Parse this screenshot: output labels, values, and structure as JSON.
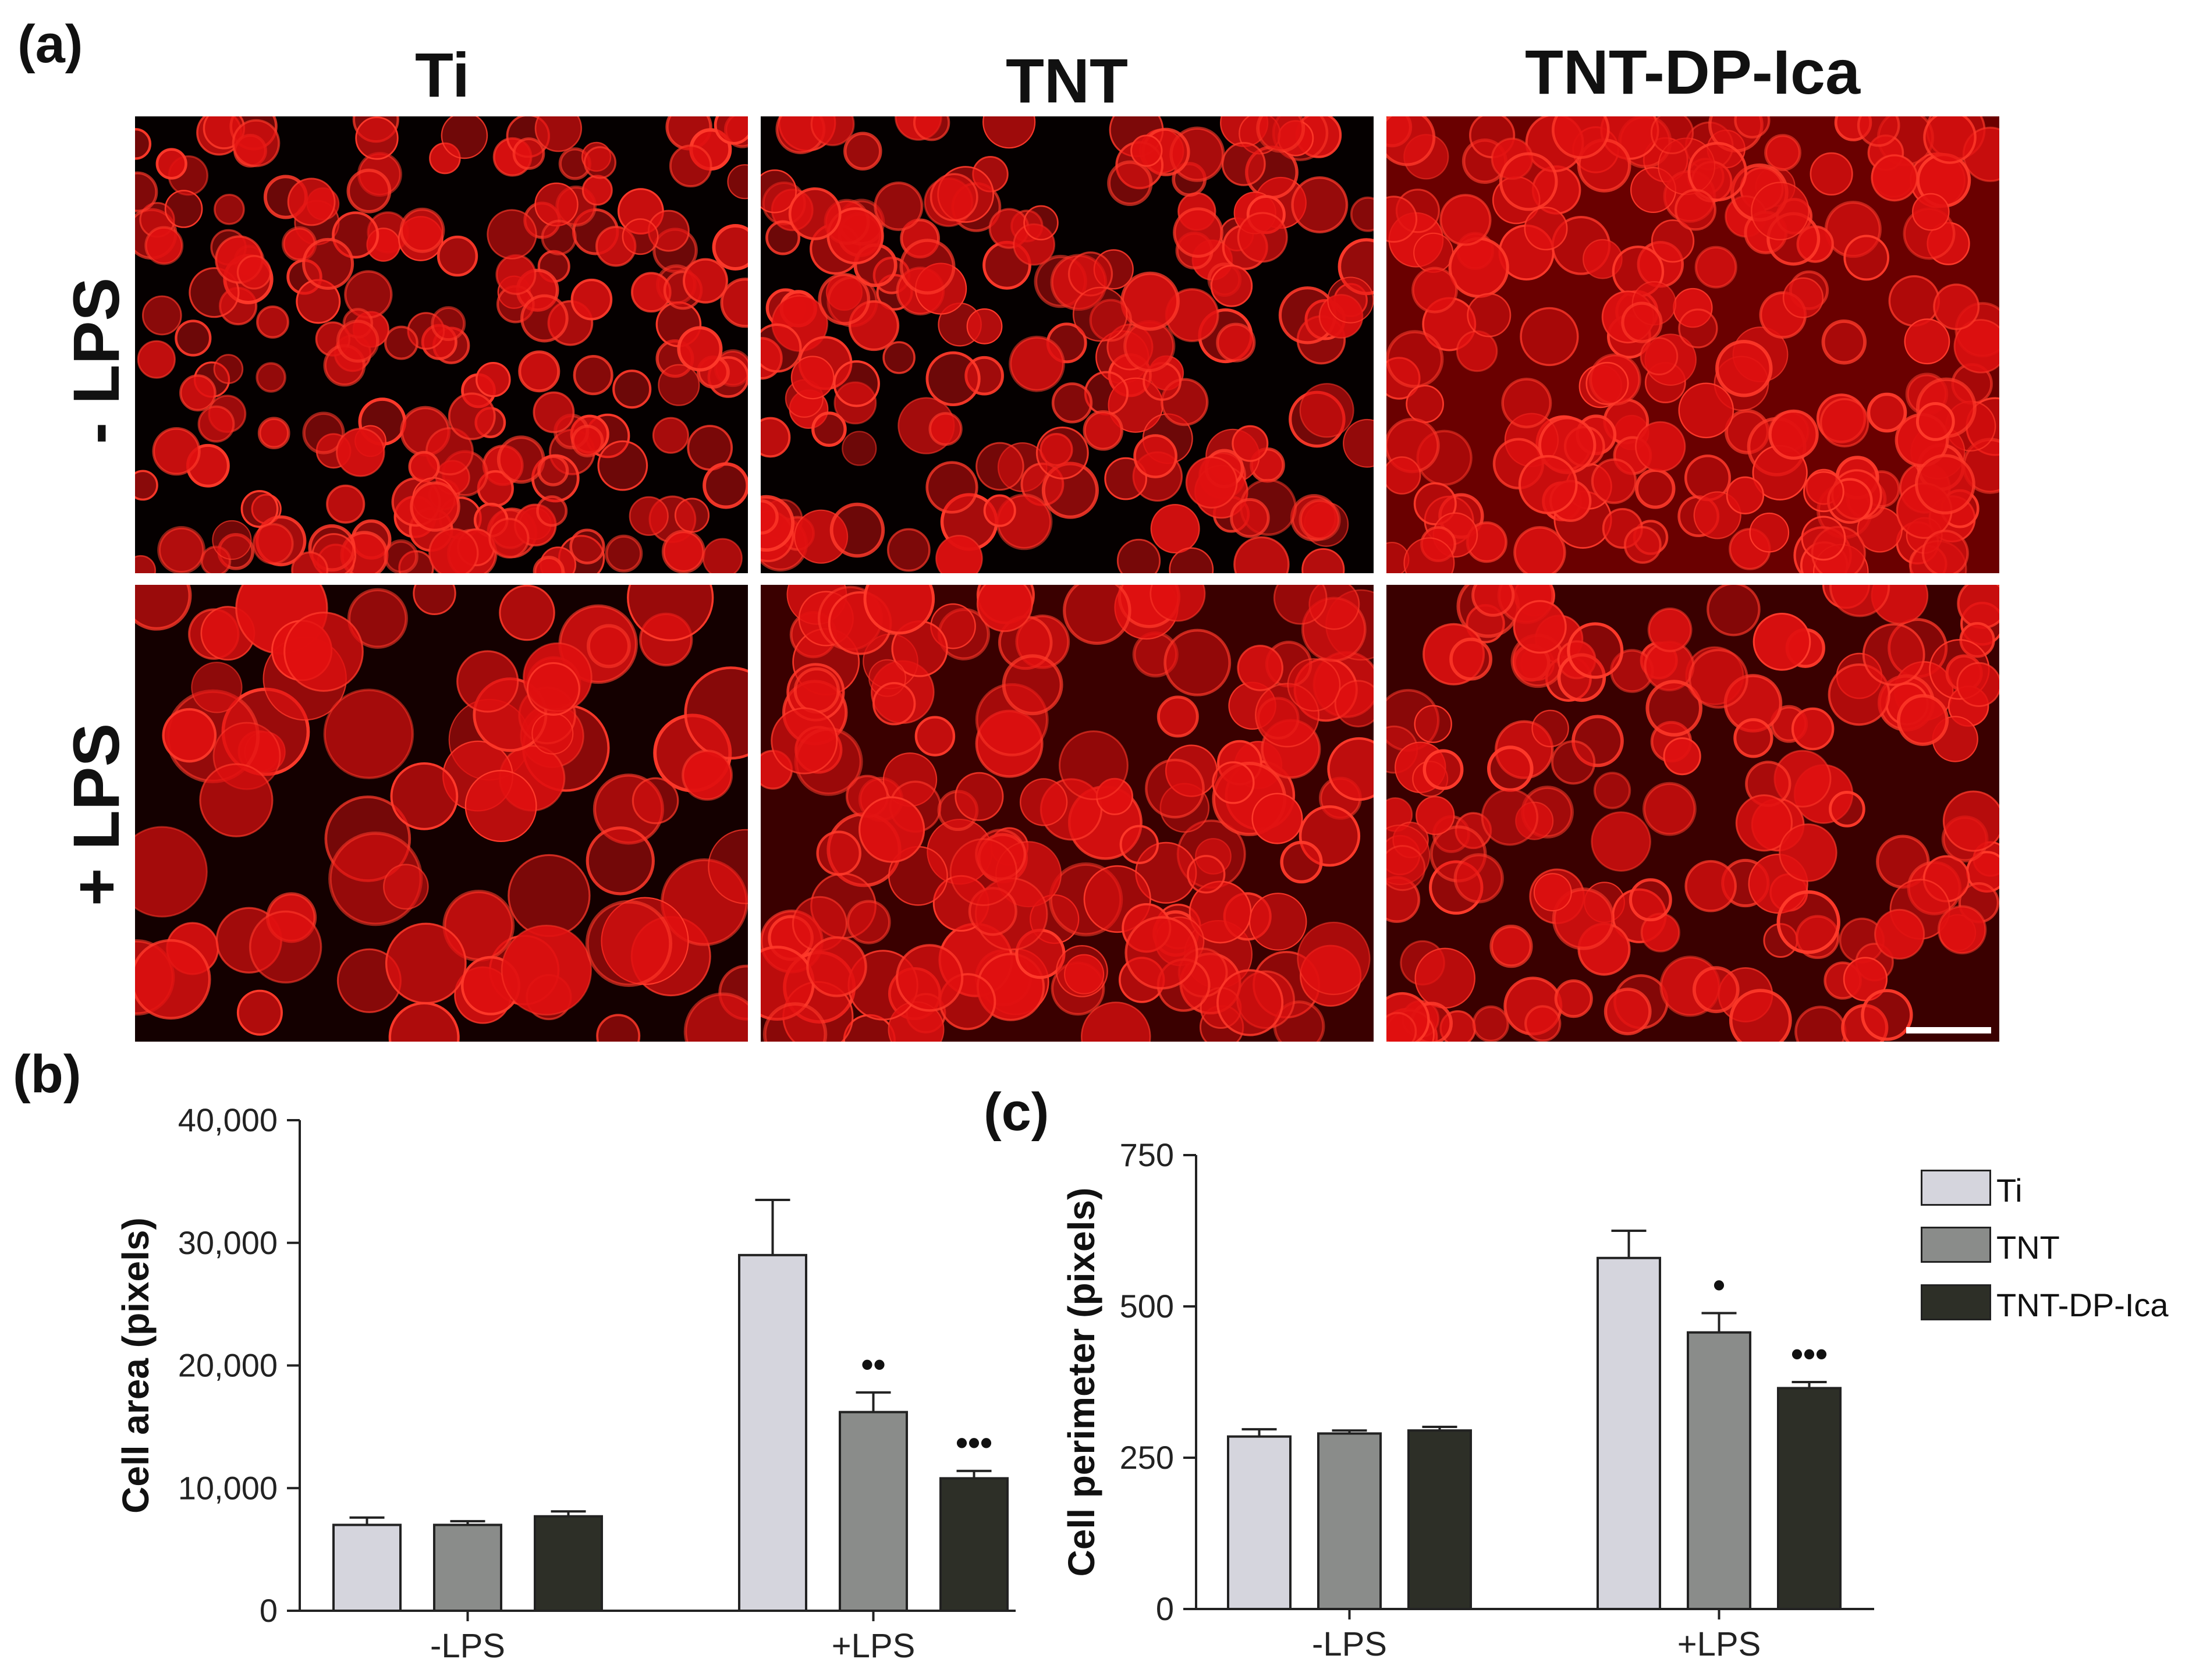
{
  "panel_a": {
    "label": "(a)",
    "column_titles": [
      "Ti",
      "TNT",
      "TNT-DP-Ica"
    ],
    "row_titles": [
      "- LPS",
      "+ LPS"
    ],
    "colors": {
      "background": "#000000",
      "cell": "#e01010",
      "cell_bright": "#ff3a2a",
      "scale_bar": "#ffffff"
    }
  },
  "chart_data": [
    {
      "panel_label": "(b)",
      "type": "bar",
      "title": "",
      "ylabel": "Cell area (pixels)",
      "xlabel": "",
      "categories": [
        "-LPS",
        "+LPS"
      ],
      "ylim": [
        0,
        40000
      ],
      "yticks": [
        0,
        10000,
        20000,
        30000,
        40000
      ],
      "ytick_labels": [
        "0",
        "10,000",
        "20,000",
        "30,000",
        "40,000"
      ],
      "series": [
        {
          "name": "Ti",
          "values": [
            7000,
            29000
          ],
          "errors": [
            600,
            4500
          ],
          "sig": [
            "",
            ""
          ]
        },
        {
          "name": "TNT",
          "values": [
            7000,
            16200
          ],
          "errors": [
            300,
            1600
          ],
          "sig": [
            "",
            "••"
          ]
        },
        {
          "name": "TNT-DP-Ica",
          "values": [
            7700,
            10800
          ],
          "errors": [
            400,
            600
          ],
          "sig": [
            "",
            "•••"
          ]
        }
      ]
    },
    {
      "panel_label": "(c)",
      "type": "bar",
      "title": "",
      "ylabel": "Cell perimeter (pixels)",
      "xlabel": "",
      "categories": [
        "-LPS",
        "+LPS"
      ],
      "ylim": [
        0,
        750
      ],
      "yticks": [
        0,
        250,
        500,
        750
      ],
      "ytick_labels": [
        "0",
        "250",
        "500",
        "750"
      ],
      "series": [
        {
          "name": "Ti",
          "values": [
            285,
            580
          ],
          "errors": [
            12,
            45
          ],
          "sig": [
            "",
            ""
          ]
        },
        {
          "name": "TNT",
          "values": [
            290,
            457
          ],
          "errors": [
            5,
            32
          ],
          "sig": [
            "",
            "•"
          ]
        },
        {
          "name": "TNT-DP-Ica",
          "values": [
            295,
            365
          ],
          "errors": [
            6,
            10
          ],
          "sig": [
            "",
            "•••"
          ]
        }
      ]
    }
  ],
  "legend": {
    "entries": [
      "Ti",
      "TNT",
      "TNT-DP-Ica"
    ],
    "colors": [
      "#d5d5dd",
      "#8a8c8a",
      "#2d2f27"
    ]
  }
}
